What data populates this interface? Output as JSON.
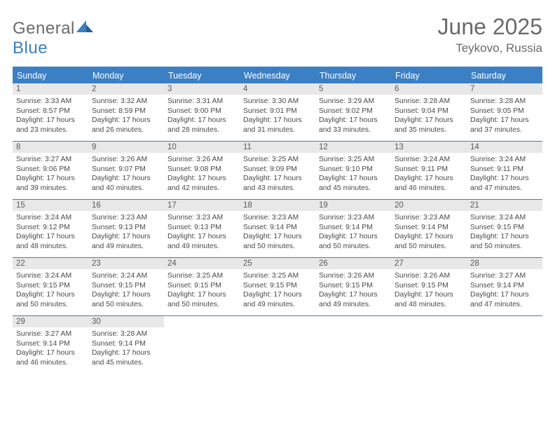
{
  "logo": {
    "part1": "General",
    "part2": "Blue"
  },
  "title": "June 2025",
  "location": "Teykovo, Russia",
  "colors": {
    "accent": "#3b7fc4",
    "text": "#4a4a4a",
    "muted": "#6a6a6a",
    "dateBar": "#e8e8e8",
    "background": "#ffffff"
  },
  "dayNames": [
    "Sunday",
    "Monday",
    "Tuesday",
    "Wednesday",
    "Thursday",
    "Friday",
    "Saturday"
  ],
  "weeks": [
    [
      {
        "date": "1",
        "sunrise": "3:33 AM",
        "sunset": "8:57 PM",
        "dl1": "Daylight: 17 hours",
        "dl2": "and 23 minutes."
      },
      {
        "date": "2",
        "sunrise": "3:32 AM",
        "sunset": "8:59 PM",
        "dl1": "Daylight: 17 hours",
        "dl2": "and 26 minutes."
      },
      {
        "date": "3",
        "sunrise": "3:31 AM",
        "sunset": "9:00 PM",
        "dl1": "Daylight: 17 hours",
        "dl2": "and 28 minutes."
      },
      {
        "date": "4",
        "sunrise": "3:30 AM",
        "sunset": "9:01 PM",
        "dl1": "Daylight: 17 hours",
        "dl2": "and 31 minutes."
      },
      {
        "date": "5",
        "sunrise": "3:29 AM",
        "sunset": "9:02 PM",
        "dl1": "Daylight: 17 hours",
        "dl2": "and 33 minutes."
      },
      {
        "date": "6",
        "sunrise": "3:28 AM",
        "sunset": "9:04 PM",
        "dl1": "Daylight: 17 hours",
        "dl2": "and 35 minutes."
      },
      {
        "date": "7",
        "sunrise": "3:28 AM",
        "sunset": "9:05 PM",
        "dl1": "Daylight: 17 hours",
        "dl2": "and 37 minutes."
      }
    ],
    [
      {
        "date": "8",
        "sunrise": "3:27 AM",
        "sunset": "9:06 PM",
        "dl1": "Daylight: 17 hours",
        "dl2": "and 39 minutes."
      },
      {
        "date": "9",
        "sunrise": "3:26 AM",
        "sunset": "9:07 PM",
        "dl1": "Daylight: 17 hours",
        "dl2": "and 40 minutes."
      },
      {
        "date": "10",
        "sunrise": "3:26 AM",
        "sunset": "9:08 PM",
        "dl1": "Daylight: 17 hours",
        "dl2": "and 42 minutes."
      },
      {
        "date": "11",
        "sunrise": "3:25 AM",
        "sunset": "9:09 PM",
        "dl1": "Daylight: 17 hours",
        "dl2": "and 43 minutes."
      },
      {
        "date": "12",
        "sunrise": "3:25 AM",
        "sunset": "9:10 PM",
        "dl1": "Daylight: 17 hours",
        "dl2": "and 45 minutes."
      },
      {
        "date": "13",
        "sunrise": "3:24 AM",
        "sunset": "9:11 PM",
        "dl1": "Daylight: 17 hours",
        "dl2": "and 46 minutes."
      },
      {
        "date": "14",
        "sunrise": "3:24 AM",
        "sunset": "9:11 PM",
        "dl1": "Daylight: 17 hours",
        "dl2": "and 47 minutes."
      }
    ],
    [
      {
        "date": "15",
        "sunrise": "3:24 AM",
        "sunset": "9:12 PM",
        "dl1": "Daylight: 17 hours",
        "dl2": "and 48 minutes."
      },
      {
        "date": "16",
        "sunrise": "3:23 AM",
        "sunset": "9:13 PM",
        "dl1": "Daylight: 17 hours",
        "dl2": "and 49 minutes."
      },
      {
        "date": "17",
        "sunrise": "3:23 AM",
        "sunset": "9:13 PM",
        "dl1": "Daylight: 17 hours",
        "dl2": "and 49 minutes."
      },
      {
        "date": "18",
        "sunrise": "3:23 AM",
        "sunset": "9:14 PM",
        "dl1": "Daylight: 17 hours",
        "dl2": "and 50 minutes."
      },
      {
        "date": "19",
        "sunrise": "3:23 AM",
        "sunset": "9:14 PM",
        "dl1": "Daylight: 17 hours",
        "dl2": "and 50 minutes."
      },
      {
        "date": "20",
        "sunrise": "3:23 AM",
        "sunset": "9:14 PM",
        "dl1": "Daylight: 17 hours",
        "dl2": "and 50 minutes."
      },
      {
        "date": "21",
        "sunrise": "3:24 AM",
        "sunset": "9:15 PM",
        "dl1": "Daylight: 17 hours",
        "dl2": "and 50 minutes."
      }
    ],
    [
      {
        "date": "22",
        "sunrise": "3:24 AM",
        "sunset": "9:15 PM",
        "dl1": "Daylight: 17 hours",
        "dl2": "and 50 minutes."
      },
      {
        "date": "23",
        "sunrise": "3:24 AM",
        "sunset": "9:15 PM",
        "dl1": "Daylight: 17 hours",
        "dl2": "and 50 minutes."
      },
      {
        "date": "24",
        "sunrise": "3:25 AM",
        "sunset": "9:15 PM",
        "dl1": "Daylight: 17 hours",
        "dl2": "and 50 minutes."
      },
      {
        "date": "25",
        "sunrise": "3:25 AM",
        "sunset": "9:15 PM",
        "dl1": "Daylight: 17 hours",
        "dl2": "and 49 minutes."
      },
      {
        "date": "26",
        "sunrise": "3:26 AM",
        "sunset": "9:15 PM",
        "dl1": "Daylight: 17 hours",
        "dl2": "and 49 minutes."
      },
      {
        "date": "27",
        "sunrise": "3:26 AM",
        "sunset": "9:15 PM",
        "dl1": "Daylight: 17 hours",
        "dl2": "and 48 minutes."
      },
      {
        "date": "28",
        "sunrise": "3:27 AM",
        "sunset": "9:14 PM",
        "dl1": "Daylight: 17 hours",
        "dl2": "and 47 minutes."
      }
    ],
    [
      {
        "date": "29",
        "sunrise": "3:27 AM",
        "sunset": "9:14 PM",
        "dl1": "Daylight: 17 hours",
        "dl2": "and 46 minutes."
      },
      {
        "date": "30",
        "sunrise": "3:28 AM",
        "sunset": "9:14 PM",
        "dl1": "Daylight: 17 hours",
        "dl2": "and 45 minutes."
      },
      {
        "empty": true
      },
      {
        "empty": true
      },
      {
        "empty": true
      },
      {
        "empty": true
      },
      {
        "empty": true
      }
    ]
  ],
  "labels": {
    "sunrise": "Sunrise: ",
    "sunset": "Sunset: "
  }
}
